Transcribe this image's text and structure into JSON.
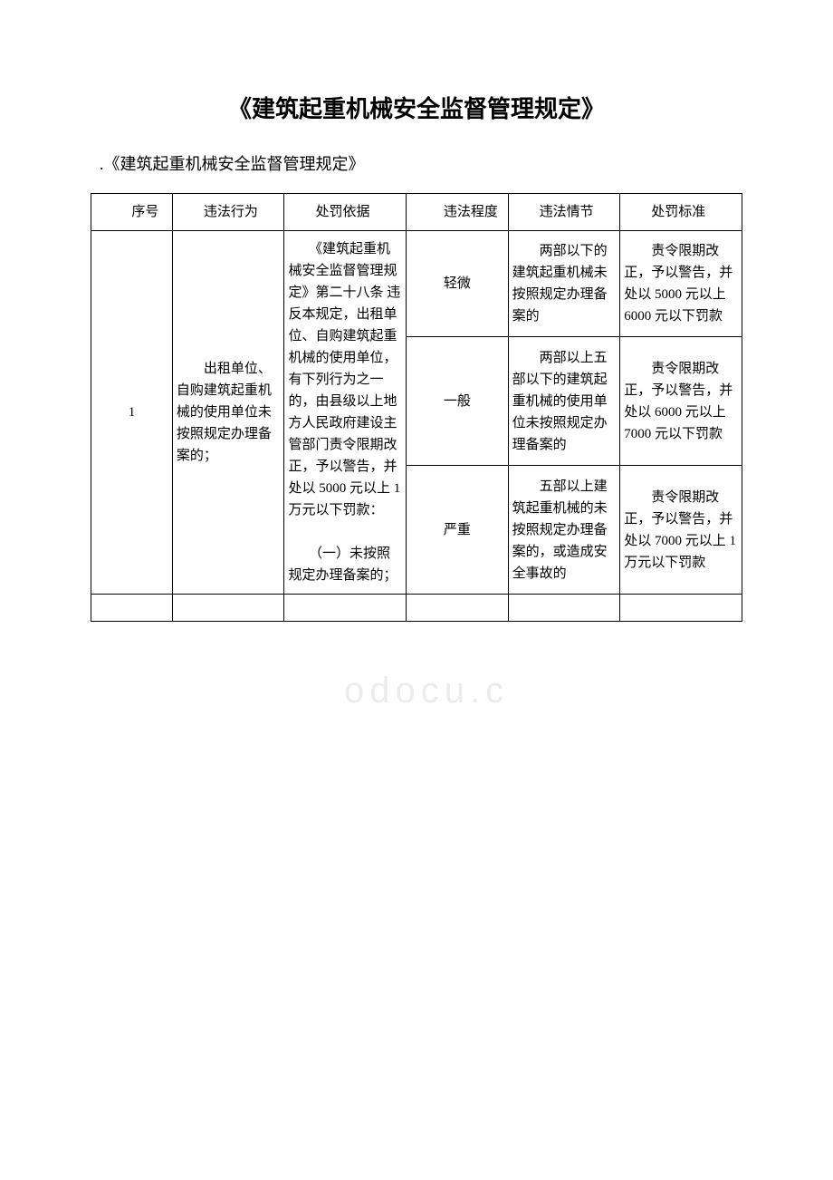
{
  "title": "《建筑起重机械安全监督管理规定》",
  "subtitle": ".《建筑起重机械安全监督管理规定》",
  "watermark": "odocu.c",
  "headers": {
    "seq": "序号",
    "behavior": "违法行为",
    "basis": "处罚依据",
    "degree": "违法程度",
    "circ": "违法情节",
    "standard": "处罚标准"
  },
  "row1": {
    "seq": "1",
    "behavior": "　　出租单位、自购建筑起重机械的使用单位未按照规定办理备案的；",
    "basis": "　　《建筑起重机械安全监督管理规定》第二十八条 违反本规定，出租单位、自购建筑起重机械的使用单位，有下列行为之一的，由县级以上地方人民政府建设主管部门责令限期改正，予以警告，并处以 5000 元以上 1 万元以下罚款：\n\n　　（一）未按照规定办理备案的；",
    "levels": {
      "minor": {
        "degree": "轻微",
        "circ": "　　两部以下的建筑起重机械未按照规定办理备案的",
        "standard": "　　责令限期改正，予以警告，并处以 5000 元以上 6000 元以下罚款"
      },
      "normal": {
        "degree": "一般",
        "circ": "　　两部以上五部以下的建筑起重机械的使用单位未按照规定办理备案的",
        "standard": "　　责令限期改正，予以警告，并处以 6000 元以上 7000 元以下罚款"
      },
      "severe": {
        "degree": "严重",
        "circ": "　　五部以上建筑起重机械的未按照规定办理备案的，或造成安全事故的",
        "standard": "　　责令限期改正，予以警告，并处以 7000 元以上 1 万元以下罚款"
      }
    }
  }
}
